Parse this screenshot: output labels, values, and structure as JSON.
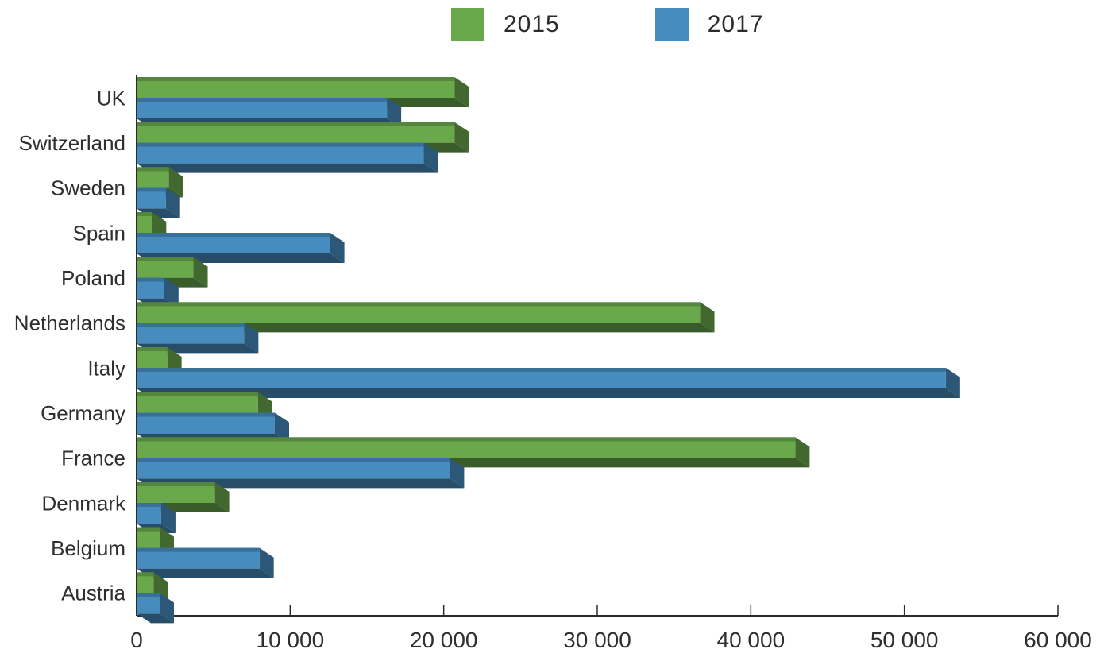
{
  "legend": {
    "items": [
      {
        "label": "2015",
        "color": "#6AA84C"
      },
      {
        "label": "2017",
        "color": "#478CBE"
      }
    ]
  },
  "chart_data": {
    "type": "bar",
    "orientation": "horizontal",
    "title": "",
    "xlabel": "",
    "ylabel": "",
    "categories": [
      "UK",
      "Switzerland",
      "Sweden",
      "Spain",
      "Poland",
      "Netherlands",
      "Italy",
      "Germany",
      "France",
      "Denmark",
      "Belgium",
      "Austria"
    ],
    "series": [
      {
        "name": "2015",
        "color": "#6AA84C",
        "values": [
          20700,
          20700,
          2100,
          1000,
          3700,
          36700,
          2000,
          7900,
          42900,
          5100,
          1500,
          1100
        ]
      },
      {
        "name": "2017",
        "color": "#478CBE",
        "values": [
          16300,
          18700,
          1900,
          12600,
          1800,
          7000,
          52700,
          9000,
          20400,
          1600,
          8000,
          1500
        ]
      }
    ],
    "xlim": [
      0,
      60000
    ],
    "x_ticks": [
      0,
      10000,
      20000,
      30000,
      40000,
      50000,
      60000
    ],
    "x_tick_labels": [
      "0",
      "10 000",
      "20 000",
      "30 000",
      "40 000",
      "50 000",
      "60 000"
    ],
    "grid": false,
    "legend_position": "top",
    "style": "3d-extruded-bars",
    "axis_color": "#2b2b2b",
    "label_color": "#2f2f2f"
  }
}
